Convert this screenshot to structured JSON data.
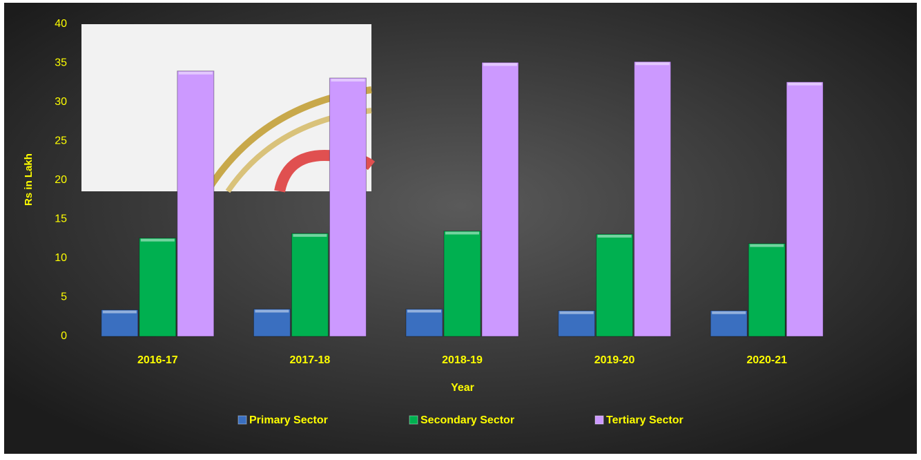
{
  "chart_data": {
    "type": "bar",
    "x_label": "Year",
    "y_label": "Rs in Lakh",
    "categories": [
      "2016-17",
      "2017-18",
      "2018-19",
      "2019-20",
      "2020-21"
    ],
    "series": [
      {
        "name": "Primary Sector",
        "color": "#3a6fc0",
        "values": [
          3.4,
          3.5,
          3.5,
          3.3,
          3.3
        ]
      },
      {
        "name": "Secondary Sector",
        "color": "#00b050",
        "values": [
          12.6,
          13.2,
          13.5,
          13.1,
          11.9
        ]
      },
      {
        "name": "Tertiary Sector",
        "color": "#cc99ff",
        "values": [
          34.0,
          33.1,
          35.1,
          35.2,
          32.6
        ]
      }
    ],
    "ylim": [
      0,
      40
    ],
    "yticks": [
      0,
      5,
      10,
      15,
      20,
      25,
      30,
      35,
      40
    ],
    "legend": "bottom"
  }
}
